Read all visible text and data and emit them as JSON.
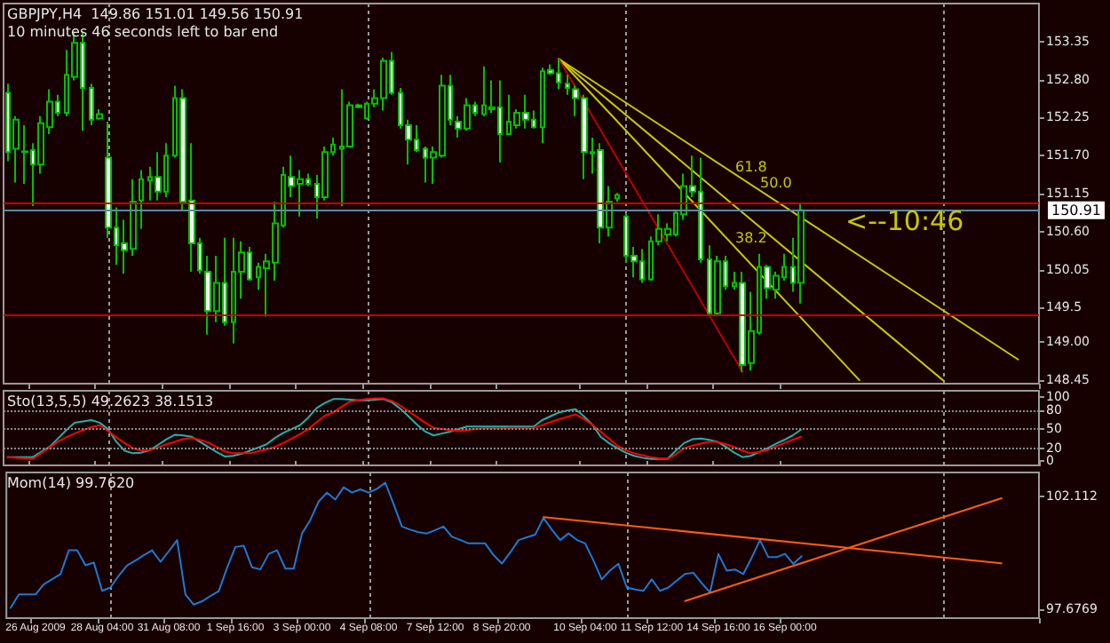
{
  "chart_data": [
    {
      "type": "candlestick",
      "title": "GBPJPY,H4  149.86 151.01 149.56 150.91",
      "subtitle": "10 minutes 46 seconds left to bar end",
      "ohlc": [
        [
          152.61,
          152.74,
          151.62,
          151.75
        ],
        [
          151.8,
          152.27,
          151.31,
          152.22
        ],
        [
          151.75,
          152.14,
          151.29,
          151.76
        ],
        [
          151.78,
          151.88,
          150.97,
          151.57
        ],
        [
          151.57,
          152.27,
          151.44,
          152.17
        ],
        [
          152.11,
          152.66,
          152.01,
          152.48
        ],
        [
          152.48,
          152.58,
          152.27,
          152.32
        ],
        [
          152.32,
          153.23,
          152.27,
          152.87
        ],
        [
          152.84,
          153.49,
          152.79,
          153.33
        ],
        [
          153.33,
          153.49,
          152.06,
          152.68
        ],
        [
          152.68,
          152.74,
          152.14,
          152.22
        ],
        [
          152.24,
          152.37,
          152.22,
          152.3
        ],
        [
          151.67,
          152.19,
          150.51,
          150.66
        ],
        [
          150.66,
          150.95,
          150.12,
          150.4
        ],
        [
          150.43,
          150.77,
          149.99,
          150.33
        ],
        [
          150.35,
          151.36,
          150.25,
          151.03
        ],
        [
          151.05,
          151.49,
          150.64,
          151.36
        ],
        [
          151.34,
          151.54,
          151.05,
          151.39
        ],
        [
          151.39,
          151.75,
          151.05,
          151.18
        ],
        [
          151.18,
          151.88,
          151.1,
          151.7
        ],
        [
          151.7,
          152.71,
          151.67,
          152.53
        ],
        [
          152.53,
          152.66,
          150.9,
          151.03
        ],
        [
          151.05,
          151.88,
          150.02,
          150.43
        ],
        [
          150.43,
          150.51,
          149.99,
          150.04
        ],
        [
          150.02,
          150.25,
          149.11,
          149.45
        ],
        [
          149.45,
          150.25,
          149.29,
          149.86
        ],
        [
          149.86,
          150.51,
          149.24,
          149.29
        ],
        [
          149.29,
          150.51,
          148.98,
          150.02
        ],
        [
          150.02,
          150.46,
          149.63,
          150.3
        ],
        [
          150.3,
          150.38,
          149.89,
          149.91
        ],
        [
          149.94,
          150.15,
          149.76,
          150.09
        ],
        [
          150.07,
          150.28,
          149.37,
          150.17
        ],
        [
          150.15,
          151.03,
          149.89,
          150.72
        ],
        [
          150.69,
          151.54,
          150.66,
          151.42
        ],
        [
          151.39,
          151.7,
          151.1,
          151.26
        ],
        [
          151.29,
          151.49,
          150.82,
          151.36
        ],
        [
          151.36,
          151.44,
          151.26,
          151.29
        ],
        [
          151.29,
          151.42,
          150.79,
          151.1
        ],
        [
          151.1,
          151.83,
          151.05,
          151.75
        ],
        [
          151.75,
          151.96,
          151.7,
          151.86
        ],
        [
          151.8,
          152.66,
          150.97,
          151.83
        ],
        [
          151.83,
          152.48,
          151.83,
          152.43
        ],
        [
          152.43,
          152.45,
          152.4,
          152.4
        ],
        [
          152.24,
          152.48,
          152.22,
          152.45
        ],
        [
          152.45,
          152.66,
          152.4,
          152.53
        ],
        [
          152.53,
          153.12,
          152.35,
          153.07
        ],
        [
          153.07,
          153.2,
          152.58,
          152.61
        ],
        [
          152.61,
          152.68,
          152.09,
          152.14
        ],
        [
          152.14,
          152.22,
          151.57,
          151.93
        ],
        [
          151.93,
          152.14,
          151.75,
          151.78
        ],
        [
          151.8,
          151.83,
          151.31,
          151.67
        ],
        [
          151.67,
          151.83,
          151.29,
          151.75
        ],
        [
          151.7,
          152.87,
          151.67,
          152.71
        ],
        [
          152.71,
          152.87,
          152.14,
          152.22
        ],
        [
          152.19,
          152.27,
          151.96,
          152.09
        ],
        [
          152.09,
          152.53,
          152.06,
          152.43
        ],
        [
          152.43,
          152.48,
          152.27,
          152.32
        ],
        [
          152.3,
          152.99,
          152.27,
          152.43
        ],
        [
          152.37,
          152.79,
          152.32,
          152.4
        ],
        [
          152.4,
          152.79,
          151.6,
          152.01
        ],
        [
          152.01,
          152.58,
          152.01,
          152.19
        ],
        [
          152.14,
          152.37,
          152.09,
          152.32
        ],
        [
          152.32,
          152.58,
          152.09,
          152.22
        ],
        [
          152.22,
          152.35,
          152.09,
          152.11
        ],
        [
          152.11,
          152.97,
          151.88,
          152.92
        ],
        [
          152.94,
          153.02,
          152.87,
          152.89
        ],
        [
          152.89,
          153.1,
          152.66,
          152.76
        ],
        [
          152.74,
          152.87,
          152.58,
          152.68
        ],
        [
          152.66,
          152.71,
          152.27,
          152.53
        ],
        [
          152.53,
          152.58,
          151.36,
          151.75
        ],
        [
          151.73,
          151.96,
          151.44,
          151.75
        ],
        [
          151.78,
          151.88,
          150.43,
          150.66
        ],
        [
          150.66,
          151.26,
          150.53,
          151.03
        ],
        [
          151.08,
          151.16,
          151.03,
          151.13
        ],
        [
          150.82,
          150.87,
          150.15,
          150.25
        ],
        [
          150.25,
          150.38,
          149.94,
          150.17
        ],
        [
          150.17,
          150.35,
          149.86,
          149.91
        ],
        [
          149.91,
          150.53,
          149.89,
          150.46
        ],
        [
          150.46,
          150.85,
          150.4,
          150.64
        ],
        [
          150.56,
          150.72,
          150.46,
          150.64
        ],
        [
          150.56,
          150.92,
          150.53,
          150.87
        ],
        [
          150.85,
          151.44,
          150.77,
          151.26
        ],
        [
          151.26,
          151.7,
          151.1,
          151.18
        ],
        [
          151.18,
          151.67,
          150.15,
          150.2
        ],
        [
          150.2,
          150.4,
          149.4,
          149.42
        ],
        [
          149.42,
          150.25,
          149.4,
          150.17
        ],
        [
          150.17,
          150.25,
          149.76,
          149.81
        ],
        [
          149.81,
          150.02,
          149.76,
          149.86
        ],
        [
          149.86,
          150.02,
          148.57,
          148.67
        ],
        [
          148.7,
          149.73,
          148.59,
          149.16
        ],
        [
          149.14,
          150.28,
          149.11,
          150.09
        ],
        [
          150.09,
          150.12,
          149.63,
          149.78
        ],
        [
          149.76,
          150.02,
          149.63,
          149.96
        ],
        [
          149.94,
          150.28,
          149.89,
          150.09
        ],
        [
          150.09,
          150.51,
          149.73,
          149.86
        ],
        [
          149.86,
          151.01,
          149.56,
          150.91
        ],
        null,
        null,
        null,
        null,
        null,
        null,
        null,
        null,
        null,
        null,
        null,
        null,
        null,
        null,
        null,
        null,
        null,
        null,
        null,
        null,
        null,
        null,
        null,
        null,
        null,
        null,
        null,
        null
      ],
      "series": [
        {
          "type": "line",
          "color": "#c8c800",
          "values": [
            null,
            null,
            null,
            null,
            null,
            null,
            null,
            null,
            null,
            null,
            null,
            null,
            null,
            null,
            null,
            null,
            null,
            null,
            null,
            null,
            null,
            null,
            null,
            null,
            null,
            null,
            null,
            null,
            null,
            null,
            null,
            null,
            null,
            null,
            null,
            null,
            null,
            null,
            null,
            null,
            null,
            null,
            null,
            null,
            null,
            null,
            null,
            null,
            null,
            null,
            null,
            null,
            null,
            null,
            null,
            null,
            null,
            null,
            null,
            null,
            null,
            null,
            null,
            null,
            null,
            null,
            153.1,
            null,
            null,
            null,
            null,
            null,
            null,
            null,
            null,
            null,
            null,
            null,
            null,
            null,
            null,
            null,
            null,
            null,
            null,
            null,
            null,
            null,
            null,
            null,
            null,
            null,
            null,
            null,
            null,
            null,
            null,
            null,
            null,
            null,
            null,
            null,
            null,
            null,
            null,
            null,
            null,
            null,
            null,
            null,
            null,
            null,
            null,
            null,
            null,
            null,
            null,
            null,
            null,
            null,
            null,
            148.75,
            null,
            null
          ]
        },
        {
          "type": "line",
          "color": "#c8c800",
          "values": [
            null,
            null,
            null,
            null,
            null,
            null,
            null,
            null,
            null,
            null,
            null,
            null,
            null,
            null,
            null,
            null,
            null,
            null,
            null,
            null,
            null,
            null,
            null,
            null,
            null,
            null,
            null,
            null,
            null,
            null,
            null,
            null,
            null,
            null,
            null,
            null,
            null,
            null,
            null,
            null,
            null,
            null,
            null,
            null,
            null,
            null,
            null,
            null,
            null,
            null,
            null,
            null,
            null,
            null,
            null,
            null,
            null,
            null,
            null,
            null,
            null,
            null,
            null,
            null,
            null,
            null,
            153.1,
            null,
            null,
            null,
            null,
            null,
            null,
            null,
            null,
            null,
            null,
            null,
            null,
            null,
            null,
            null,
            null,
            null,
            null,
            null,
            null,
            null,
            null,
            null,
            null,
            null,
            null,
            null,
            null,
            null,
            null,
            null,
            null,
            null,
            null,
            null,
            null,
            null,
            null,
            null,
            null,
            null,
            null,
            null,
            null,
            null,
            148.45,
            null,
            null,
            null,
            null,
            null,
            null,
            null,
            null,
            null,
            null,
            null
          ]
        },
        {
          "type": "line",
          "color": "#c8c800",
          "values": [
            null,
            null,
            null,
            null,
            null,
            null,
            null,
            null,
            null,
            null,
            null,
            null,
            null,
            null,
            null,
            null,
            null,
            null,
            null,
            null,
            null,
            null,
            null,
            null,
            null,
            null,
            null,
            null,
            null,
            null,
            null,
            null,
            null,
            null,
            null,
            null,
            null,
            null,
            null,
            null,
            null,
            null,
            null,
            null,
            null,
            null,
            null,
            null,
            null,
            null,
            null,
            null,
            null,
            null,
            null,
            null,
            null,
            null,
            null,
            null,
            null,
            null,
            null,
            null,
            null,
            null,
            153.1,
            null,
            null,
            null,
            null,
            null,
            null,
            null,
            null,
            null,
            null,
            null,
            null,
            null,
            null,
            null,
            null,
            null,
            null,
            null,
            null,
            null,
            null,
            null,
            null,
            null,
            null,
            null,
            null,
            null,
            null,
            null,
            null,
            null,
            null,
            null,
            148.45,
            null,
            null,
            null,
            null,
            null,
            null,
            null,
            null,
            null,
            null,
            null,
            null,
            null,
            null,
            null,
            null,
            null,
            null,
            null,
            null,
            null
          ]
        },
        {
          "type": "line",
          "color": "#c80000",
          "line_style": "dotted",
          "values": [
            null,
            null,
            null,
            null,
            null,
            null,
            null,
            null,
            null,
            null,
            null,
            null,
            null,
            null,
            null,
            null,
            null,
            null,
            null,
            null,
            null,
            null,
            null,
            null,
            null,
            null,
            null,
            null,
            null,
            null,
            null,
            null,
            null,
            null,
            null,
            null,
            null,
            null,
            null,
            null,
            null,
            null,
            null,
            null,
            null,
            null,
            null,
            null,
            null,
            null,
            null,
            null,
            null,
            null,
            null,
            null,
            null,
            null,
            null,
            null,
            null,
            null,
            null,
            null,
            null,
            null,
            153.1,
            null,
            null,
            null,
            null,
            null,
            null,
            null,
            null,
            null,
            null,
            null,
            null,
            null,
            null,
            null,
            null,
            null,
            null,
            null,
            null,
            null,
            148.57,
            null,
            null,
            null,
            null,
            null,
            null,
            null,
            null,
            null,
            null,
            null,
            null,
            null,
            null,
            null,
            null,
            null,
            null,
            null,
            null,
            null,
            null,
            null,
            null,
            null,
            null,
            null,
            null,
            null,
            null,
            null,
            null,
            null,
            null,
            null
          ]
        }
      ],
      "ylim": [
        148.4,
        153.9
      ],
      "yticks": [
        148.45,
        {
          "value": 149,
          "label": "149.00"
        },
        149.5,
        150.05,
        {
          "value": 150.6,
          "label": "150.60"
        },
        151.15,
        {
          "value": 151.7,
          "label": "151.70"
        },
        152.25,
        {
          "value": 152.8,
          "label": "152.80"
        },
        153.35
      ],
      "marker": "none",
      "tick_labels": "y",
      "ref_lines": [
        {
          "axis": "y",
          "value": 151.01,
          "color": "#c80000"
        },
        {
          "axis": "y",
          "value": 149.4,
          "color": "#c80000"
        },
        {
          "axis": "y",
          "value": 150.91,
          "label": "150.91",
          "color": "#5f8aa0"
        }
      ],
      "annotations": [
        "61.8",
        "50.0",
        "38.2",
        "<--10:46"
      ]
    },
    {
      "type": "line",
      "title": "Sto(13,5,5) 49.2623 38.1513",
      "series": [
        {
          "color": "#20b2aa",
          "values": [
            6,
            6,
            6,
            6,
            14,
            22,
            35,
            48,
            60,
            62,
            64,
            60,
            50,
            30,
            16,
            12,
            13,
            17,
            25,
            34,
            41,
            40,
            38,
            30,
            22,
            14,
            7,
            8,
            11,
            16,
            21,
            26,
            36,
            44,
            50,
            56,
            68,
            83,
            91,
            97,
            97,
            96,
            95,
            95,
            96,
            97,
            92,
            82,
            70,
            57,
            46,
            40,
            43,
            46,
            50,
            54,
            54,
            54,
            54,
            54,
            54,
            54,
            54,
            54,
            64,
            70,
            76,
            79,
            81,
            70,
            57,
            38,
            28,
            20,
            13,
            8,
            5,
            3,
            3,
            3,
            16,
            28,
            34,
            35,
            33,
            30,
            22,
            13,
            6,
            8,
            14,
            20,
            27,
            33,
            40,
            49,
            null,
            null,
            null,
            null,
            null,
            null,
            null,
            null,
            null,
            null,
            null,
            null,
            null,
            null,
            null,
            null,
            null,
            null,
            null,
            null,
            null,
            null,
            null,
            null,
            null,
            null,
            null,
            null
          ]
        },
        {
          "color": "#ff0000",
          "values": [
            6,
            5,
            4,
            3,
            12,
            21,
            30,
            37,
            43,
            48,
            53,
            56,
            47,
            37,
            28,
            20,
            16,
            17,
            21,
            26,
            30,
            34,
            36,
            33,
            29,
            22,
            15,
            12,
            12,
            12,
            15,
            18,
            22,
            28,
            35,
            42,
            50,
            61,
            71,
            76,
            85,
            93,
            95,
            97,
            98,
            98,
            94,
            87,
            78,
            69,
            60,
            52,
            50,
            48,
            47,
            48,
            50,
            51,
            51,
            51,
            52,
            52,
            52,
            52,
            56,
            61,
            65,
            69,
            73,
            66,
            57,
            46,
            35,
            24,
            17,
            12,
            9,
            6,
            4,
            3,
            10,
            20,
            24,
            27,
            30,
            30,
            26,
            22,
            16,
            12,
            14,
            17,
            23,
            28,
            33,
            38,
            null,
            null,
            null,
            null,
            null,
            null,
            null,
            null,
            null,
            null,
            null,
            null,
            null,
            null,
            null,
            null,
            null,
            null,
            null,
            null,
            null,
            null,
            null,
            null,
            null,
            null,
            null,
            null
          ]
        }
      ],
      "ylim": [
        -7,
        110
      ],
      "yticks": [
        0,
        20,
        50,
        80,
        100
      ],
      "marker": "none",
      "tick_labels": "y",
      "ref_lines": [
        {
          "axis": "y",
          "value": 80,
          "color": "#8a8a8a",
          "line_style": "dotted"
        },
        {
          "axis": "y",
          "value": 50,
          "color": "#8a8a8a",
          "line_style": "dotted"
        },
        {
          "axis": "y",
          "value": 20,
          "color": "#8a8a8a",
          "line_style": "dotted"
        }
      ]
    },
    {
      "type": "line",
      "title": "Mom(14) 99.7620",
      "categories": [
        null,
        null,
        null,
        "26 Aug 2009",
        null,
        null,
        null,
        null,
        null,
        null,
        null,
        "28 Aug 04:00",
        null,
        null,
        null,
        null,
        null,
        null,
        null,
        "31 Aug 08:00",
        null,
        null,
        null,
        null,
        null,
        null,
        null,
        "1 Sep 16:00",
        null,
        null,
        null,
        null,
        null,
        null,
        null,
        "3 Sep 00:00",
        null,
        null,
        null,
        null,
        null,
        null,
        null,
        "4 Sep 08:00",
        null,
        null,
        null,
        null,
        null,
        null,
        null,
        "7 Sep 12:00",
        null,
        null,
        null,
        null,
        null,
        null,
        null,
        "8 Sep 20:00",
        null,
        null,
        null,
        null,
        null,
        null,
        null,
        null,
        null,
        "10 Sep 04:00",
        null,
        null,
        null,
        null,
        null,
        null,
        null,
        "11 Sep 12:00",
        null,
        null,
        null,
        null,
        null,
        null,
        null,
        "14 Sep 16:00",
        null,
        null,
        null,
        null,
        null,
        null,
        null,
        "16 Sep 00:00",
        null,
        null,
        null,
        null,
        null,
        null,
        null,
        null,
        null,
        null,
        null,
        null,
        null,
        null,
        null,
        null,
        null,
        null,
        null,
        null,
        null,
        null,
        null,
        null,
        null,
        null,
        null,
        null,
        null,
        null
      ],
      "series": [
        {
          "color": "#1f78d2",
          "values": [
            97.73,
            98.26,
            98.26,
            98.26,
            98.66,
            98.86,
            99.06,
            99.99,
            99.99,
            99.4,
            99.51,
            98.4,
            98.53,
            99.0,
            99.4,
            99.59,
            99.8,
            99.99,
            99.54,
            99.95,
            100.39,
            98.26,
            97.86,
            97.99,
            98.2,
            98.39,
            99.3,
            100.12,
            100.17,
            99.32,
            99.24,
            99.85,
            99.99,
            99.27,
            99.27,
            100.65,
            101.18,
            101.9,
            102.25,
            101.98,
            102.46,
            102.25,
            102.38,
            102.25,
            102.4,
            102.64,
            101.8,
            100.92,
            100.8,
            100.7,
            100.65,
            100.78,
            100.92,
            100.52,
            100.4,
            100.26,
            100.26,
            100.26,
            99.8,
            99.47,
            99.9,
            100.39,
            100.5,
            100.6,
            101.26,
            100.8,
            100.39,
            100.65,
            100.4,
            100.26,
            99.59,
            98.85,
            99.2,
            99.46,
            98.53,
            98.45,
            98.4,
            98.85,
            98.4,
            98.53,
            98.8,
            99.06,
            99.11,
            98.7,
            98.34,
            99.85,
            99.19,
            99.24,
            99.06,
            99.7,
            100.39,
            99.72,
            99.72,
            99.85,
            99.46,
            99.76,
            null,
            null,
            null,
            null,
            null,
            null,
            null,
            null,
            null,
            null,
            null,
            null,
            null,
            null,
            null,
            null,
            null,
            null,
            null,
            null,
            null,
            null,
            null,
            null,
            null,
            null,
            null,
            null
          ]
        },
        {
          "color": "#ff5a14",
          "values": [
            null,
            null,
            null,
            null,
            null,
            null,
            null,
            null,
            null,
            null,
            null,
            null,
            null,
            null,
            null,
            null,
            null,
            null,
            null,
            null,
            null,
            null,
            null,
            null,
            null,
            null,
            null,
            null,
            null,
            null,
            null,
            null,
            null,
            null,
            null,
            null,
            null,
            null,
            null,
            null,
            null,
            null,
            null,
            null,
            null,
            null,
            null,
            null,
            null,
            null,
            null,
            null,
            null,
            null,
            null,
            null,
            null,
            null,
            null,
            null,
            null,
            null,
            null,
            null,
            101.29,
            null,
            null,
            null,
            null,
            null,
            null,
            null,
            null,
            null,
            null,
            null,
            null,
            null,
            null,
            null,
            null,
            null,
            null,
            null,
            null,
            null,
            null,
            null,
            null,
            null,
            null,
            null,
            null,
            null,
            null,
            null,
            null,
            null,
            null,
            null,
            null,
            null,
            null,
            null,
            null,
            null,
            null,
            null,
            null,
            null,
            null,
            null,
            null,
            null,
            null,
            null,
            null,
            null,
            null,
            99.48,
            null,
            null,
            null,
            null
          ]
        },
        {
          "color": "#ff5a14",
          "values": [
            null,
            null,
            null,
            null,
            null,
            null,
            null,
            null,
            null,
            null,
            null,
            null,
            null,
            null,
            null,
            null,
            null,
            null,
            null,
            null,
            null,
            null,
            null,
            null,
            null,
            null,
            null,
            null,
            null,
            null,
            null,
            null,
            null,
            null,
            null,
            null,
            null,
            null,
            null,
            null,
            null,
            null,
            null,
            null,
            null,
            null,
            null,
            null,
            null,
            null,
            null,
            null,
            null,
            null,
            null,
            null,
            null,
            null,
            null,
            null,
            null,
            null,
            null,
            null,
            null,
            null,
            null,
            null,
            null,
            null,
            null,
            null,
            null,
            null,
            null,
            null,
            null,
            null,
            null,
            null,
            null,
            98.0,
            null,
            null,
            null,
            null,
            null,
            null,
            null,
            null,
            null,
            null,
            null,
            null,
            null,
            null,
            null,
            null,
            null,
            null,
            null,
            null,
            null,
            null,
            null,
            null,
            null,
            null,
            null,
            null,
            null,
            null,
            null,
            null,
            null,
            null,
            null,
            null,
            null,
            102.03,
            null,
            null,
            null,
            null
          ]
        }
      ],
      "ylim": [
        97.33,
        103.04
      ],
      "yticks": [
        97.6769,
        102.112
      ],
      "marker": "none"
    }
  ]
}
